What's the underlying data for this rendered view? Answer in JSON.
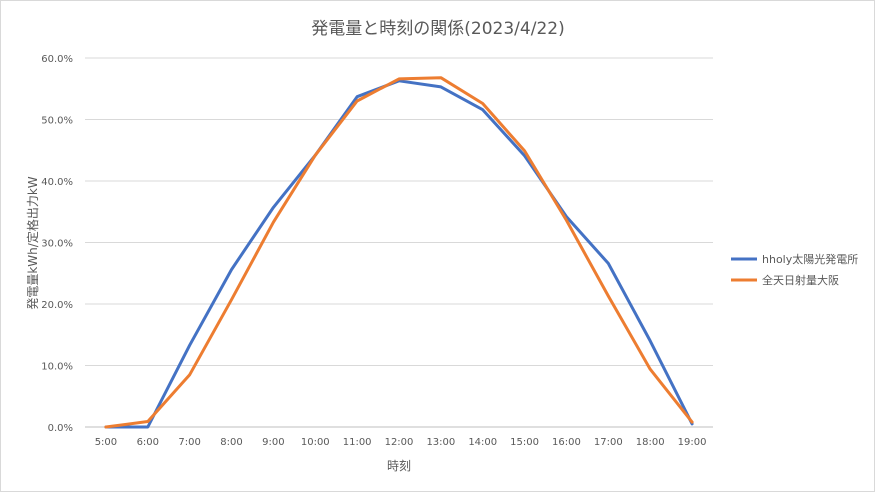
{
  "chart_data": {
    "type": "line",
    "title": "発電量と時刻の関係(2023/4/22)",
    "xlabel": "時刻",
    "ylabel": "発電量kWh/定格出力kW",
    "categories": [
      "5:00",
      "6:00",
      "7:00",
      "8:00",
      "9:00",
      "10:00",
      "11:00",
      "12:00",
      "13:00",
      "14:00",
      "15:00",
      "16:00",
      "17:00",
      "18:00",
      "19:00"
    ],
    "yticks": [
      "0.0%",
      "10.0%",
      "20.0%",
      "30.0%",
      "40.0%",
      "50.0%",
      "60.0%"
    ],
    "ylim": [
      0,
      0.6
    ],
    "grid": true,
    "legend_position": "right",
    "series": [
      {
        "name": "hholy太陽光発電所",
        "color": "#4472c4",
        "values": [
          0.0,
          0.0,
          0.133,
          0.256,
          0.357,
          0.442,
          0.537,
          0.563,
          0.553,
          0.516,
          0.441,
          0.342,
          0.266,
          0.14,
          0.005
        ]
      },
      {
        "name": "全天日射量大阪",
        "color": "#ed7d31",
        "values": [
          0.0,
          0.009,
          0.085,
          0.207,
          0.333,
          0.442,
          0.53,
          0.566,
          0.568,
          0.526,
          0.449,
          0.336,
          0.213,
          0.094,
          0.008
        ]
      }
    ]
  }
}
